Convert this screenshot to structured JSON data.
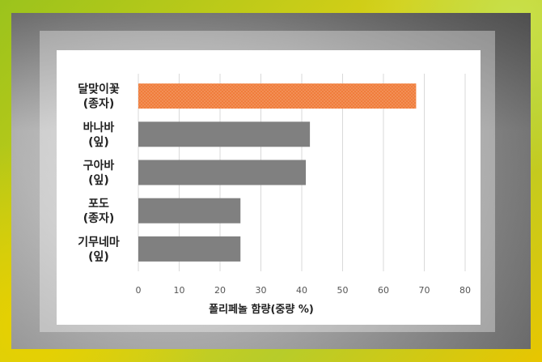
{
  "chart_data": {
    "type": "bar",
    "orientation": "horizontal",
    "categories": [
      {
        "line1": "달맞이꽃",
        "line2": "(종자)"
      },
      {
        "line1": "바나바",
        "line2": "(잎)"
      },
      {
        "line1": "구아바",
        "line2": "(잎)"
      },
      {
        "line1": "포도",
        "line2": "(종자)"
      },
      {
        "line1": "기무네마",
        "line2": "(잎)"
      }
    ],
    "values": [
      68,
      42,
      41,
      25,
      25
    ],
    "highlight_index": 0,
    "xlabel": "폴리페놀 함량(중량 %)",
    "xlim": [
      0,
      80
    ],
    "xticks": [
      "0",
      "10",
      "20",
      "30",
      "40",
      "50",
      "60",
      "70",
      "80"
    ],
    "grid": "vertical",
    "colors": {
      "highlight": "#f07d3c",
      "highlight_hatch": "#f5a574",
      "bar": "#808080",
      "grid": "#d9d9d9",
      "text": "#222222",
      "tick": "#555555"
    }
  }
}
